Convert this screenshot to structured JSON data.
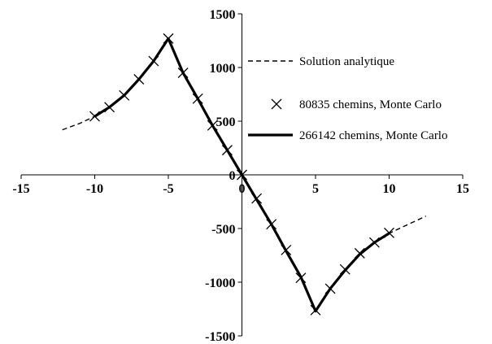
{
  "chart_data": {
    "type": "line",
    "xlim": [
      -15,
      15
    ],
    "ylim": [
      -1500,
      1500
    ],
    "x_ticks": [
      -15,
      -10,
      -5,
      0,
      5,
      10,
      15
    ],
    "y_ticks": [
      -1500,
      -1000,
      -500,
      0,
      500,
      1000,
      1500
    ],
    "x_tick_labels": [
      "-15",
      "-10",
      "-5",
      "0",
      "5",
      "10",
      "15"
    ],
    "y_tick_labels": [
      "-1500",
      "-1000",
      "-500",
      "0",
      "500",
      "1000",
      "1500"
    ],
    "grid": false,
    "legend_position": "right",
    "series": [
      {
        "name": "Solution analytique",
        "style": "dashed",
        "color": "#000000",
        "x": [
          -12.2,
          -11,
          -10,
          -9,
          -8,
          -7,
          -6,
          -5,
          -4,
          -3,
          -2,
          -1,
          0,
          1,
          2,
          3,
          4,
          5,
          6,
          7,
          8,
          9,
          10,
          11,
          12.5
        ],
        "y": [
          420,
          480,
          545,
          630,
          740,
          890,
          1060,
          1270,
          950,
          710,
          460,
          230,
          0,
          -230,
          -460,
          -710,
          -950,
          -1270,
          -1060,
          -890,
          -740,
          -630,
          -545,
          -480,
          -385
        ]
      },
      {
        "name": "80835 chemins, Monte Carlo",
        "style": "markers",
        "marker": "x",
        "color": "#000000",
        "x": [
          -10,
          -9,
          -8,
          -7,
          -6,
          -5,
          -4,
          -3,
          -2,
          -1,
          0,
          1,
          2,
          3,
          4,
          5,
          6,
          7,
          8,
          9,
          10
        ],
        "y": [
          545,
          630,
          740,
          890,
          1060,
          1270,
          950,
          710,
          460,
          230,
          0,
          -220,
          -460,
          -700,
          -960,
          -1260,
          -1060,
          -880,
          -730,
          -630,
          -540
        ]
      },
      {
        "name": "266142 chemins, Monte Carlo",
        "style": "solid",
        "color": "#000000",
        "x": [
          -10,
          -9,
          -8,
          -7,
          -6,
          -5,
          -4,
          -3,
          -2,
          -1,
          0,
          1,
          2,
          3,
          4,
          5,
          6,
          7,
          8,
          9,
          10
        ],
        "y": [
          545,
          630,
          740,
          890,
          1060,
          1270,
          950,
          710,
          460,
          230,
          0,
          -230,
          -460,
          -710,
          -950,
          -1270,
          -1060,
          -890,
          -740,
          -630,
          -545
        ]
      }
    ]
  }
}
